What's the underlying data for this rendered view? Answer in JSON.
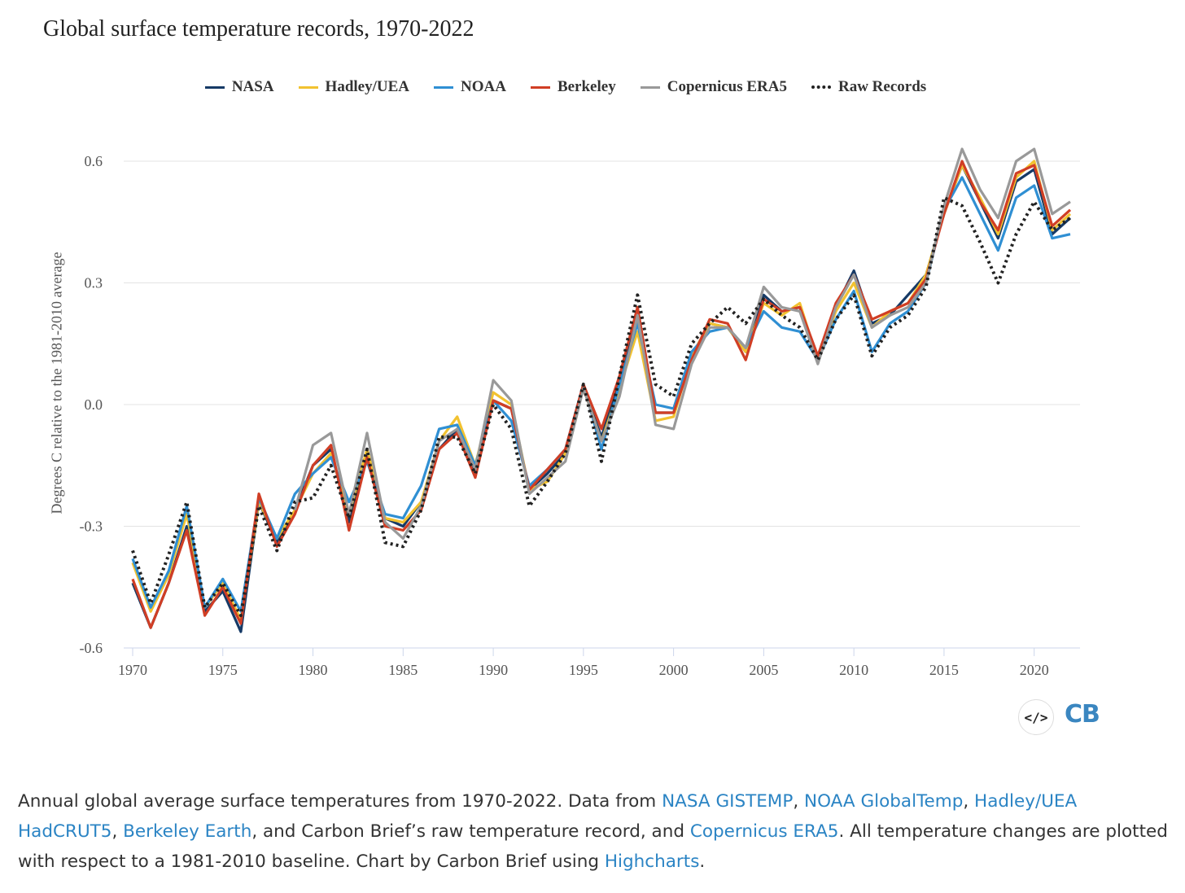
{
  "chart_data": {
    "type": "line",
    "title": "Global surface temperature records, 1970-2022",
    "ylabel": "Degrees C relative to the 1981-2010 average",
    "xlabel": "",
    "xlim": [
      1970,
      2022
    ],
    "ylim": [
      -0.6,
      0.6
    ],
    "yticks": [
      "0.6",
      "0.3",
      "0.0",
      "-0.3",
      "-0.6"
    ],
    "ytick_values": [
      0.6,
      0.3,
      0.0,
      -0.3,
      -0.6
    ],
    "xticks": [
      "1970",
      "1975",
      "1980",
      "1985",
      "1990",
      "1995",
      "2000",
      "2005",
      "2010",
      "2015",
      "2020"
    ],
    "grid": true,
    "legend_position": "top-center",
    "series": [
      {
        "name": "NASA",
        "color": "#163a66",
        "dash": false,
        "start": 1970,
        "values": [
          -0.44,
          -0.55,
          -0.44,
          -0.3,
          -0.51,
          -0.46,
          -0.56,
          -0.24,
          -0.34,
          -0.26,
          -0.15,
          -0.11,
          -0.29,
          -0.12,
          -0.28,
          -0.3,
          -0.24,
          -0.11,
          -0.06,
          -0.17,
          0.01,
          -0.01,
          -0.21,
          -0.17,
          -0.12,
          0.04,
          -0.08,
          0.06,
          0.22,
          -0.02,
          -0.02,
          0.12,
          0.2,
          0.19,
          0.13,
          0.27,
          0.23,
          0.24,
          0.11,
          0.24,
          0.33,
          0.2,
          0.22,
          0.27,
          0.32,
          0.47,
          0.59,
          0.5,
          0.41,
          0.55,
          0.58,
          0.42,
          0.46
        ]
      },
      {
        "name": "Hadley/UEA",
        "color": "#f2c230",
        "dash": false,
        "start": 1970,
        "values": [
          -0.39,
          -0.51,
          -0.42,
          -0.27,
          -0.5,
          -0.44,
          -0.53,
          -0.24,
          -0.33,
          -0.26,
          -0.17,
          -0.12,
          -0.27,
          -0.11,
          -0.28,
          -0.29,
          -0.24,
          -0.09,
          -0.03,
          -0.15,
          0.03,
          0.0,
          -0.21,
          -0.19,
          -0.12,
          0.04,
          -0.09,
          0.04,
          0.18,
          -0.04,
          -0.03,
          0.12,
          0.2,
          0.19,
          0.13,
          0.25,
          0.22,
          0.25,
          0.11,
          0.23,
          0.3,
          0.19,
          0.23,
          0.25,
          0.32,
          0.47,
          0.59,
          0.51,
          0.42,
          0.56,
          0.6,
          0.43,
          0.47
        ]
      },
      {
        "name": "NOAA",
        "color": "#2f8fd3",
        "dash": false,
        "start": 1970,
        "values": [
          -0.38,
          -0.5,
          -0.41,
          -0.25,
          -0.5,
          -0.43,
          -0.51,
          -0.23,
          -0.33,
          -0.22,
          -0.17,
          -0.13,
          -0.24,
          -0.14,
          -0.27,
          -0.28,
          -0.2,
          -0.06,
          -0.05,
          -0.15,
          0.01,
          -0.04,
          -0.2,
          -0.16,
          -0.11,
          0.05,
          -0.11,
          0.05,
          0.2,
          0.0,
          -0.01,
          0.13,
          0.18,
          0.19,
          0.14,
          0.23,
          0.19,
          0.18,
          0.11,
          0.21,
          0.28,
          0.13,
          0.2,
          0.23,
          0.3,
          0.48,
          0.56,
          0.47,
          0.38,
          0.51,
          0.54,
          0.41,
          0.42
        ]
      },
      {
        "name": "Berkeley",
        "color": "#d03e25",
        "dash": false,
        "start": 1970,
        "values": [
          -0.43,
          -0.55,
          -0.44,
          -0.31,
          -0.52,
          -0.45,
          -0.54,
          -0.22,
          -0.35,
          -0.27,
          -0.15,
          -0.1,
          -0.31,
          -0.13,
          -0.3,
          -0.31,
          -0.26,
          -0.11,
          -0.07,
          -0.18,
          0.01,
          -0.01,
          -0.21,
          -0.16,
          -0.11,
          0.05,
          -0.06,
          0.07,
          0.24,
          -0.02,
          -0.02,
          0.11,
          0.21,
          0.2,
          0.11,
          0.26,
          0.23,
          0.24,
          0.12,
          0.25,
          0.32,
          0.21,
          0.23,
          0.25,
          0.31,
          0.47,
          0.6,
          0.5,
          0.43,
          0.57,
          0.59,
          0.44,
          0.48
        ]
      },
      {
        "name": "Copernicus ERA5",
        "color": "#999999",
        "dash": false,
        "start": 1979,
        "values": [
          -0.26,
          -0.1,
          -0.07,
          -0.27,
          -0.07,
          -0.29,
          -0.33,
          -0.25,
          -0.09,
          -0.06,
          -0.16,
          0.06,
          0.01,
          -0.22,
          -0.18,
          -0.14,
          0.04,
          -0.09,
          0.02,
          0.22,
          -0.05,
          -0.06,
          0.1,
          0.19,
          0.19,
          0.14,
          0.29,
          0.24,
          0.23,
          0.1,
          0.24,
          0.32,
          0.19,
          0.22,
          0.24,
          0.3,
          0.49,
          0.63,
          0.53,
          0.46,
          0.6,
          0.63,
          0.47,
          0.5
        ]
      },
      {
        "name": "Raw Records",
        "color": "#222222",
        "dash": true,
        "start": 1970,
        "values": [
          -0.36,
          -0.49,
          -0.37,
          -0.24,
          -0.5,
          -0.44,
          -0.52,
          -0.25,
          -0.36,
          -0.24,
          -0.23,
          -0.15,
          -0.28,
          -0.11,
          -0.34,
          -0.35,
          -0.26,
          -0.08,
          -0.08,
          -0.17,
          0.0,
          -0.06,
          -0.25,
          -0.19,
          -0.12,
          0.05,
          -0.14,
          0.07,
          0.27,
          0.05,
          0.02,
          0.15,
          0.2,
          0.24,
          0.2,
          0.26,
          0.22,
          0.19,
          0.11,
          0.21,
          0.27,
          0.12,
          0.19,
          0.22,
          0.29,
          0.51,
          0.49,
          0.4,
          0.3,
          0.42,
          0.5,
          0.43,
          0.46
        ]
      }
    ]
  },
  "logo": {
    "embed": "</>",
    "brand": "CB"
  },
  "caption": {
    "t1": "Annual global average surface temperatures from 1970-2022. Data from ",
    "l1": "NASA GISTEMP",
    "t2": ", ",
    "l2": "NOAA GlobalTemp",
    "t3": ", ",
    "l3": "Hadley/UEA HadCRUT5",
    "t4": ", ",
    "l4": "Berkeley Earth",
    "t5": ", and Carbon Brief’s raw temperature record, and ",
    "l5": "Copernicus ERA5",
    "t6": ". All temperature changes are plotted with respect to a 1981-2010 baseline. Chart by Carbon Brief using ",
    "l6": "Highcharts",
    "t7": "."
  }
}
